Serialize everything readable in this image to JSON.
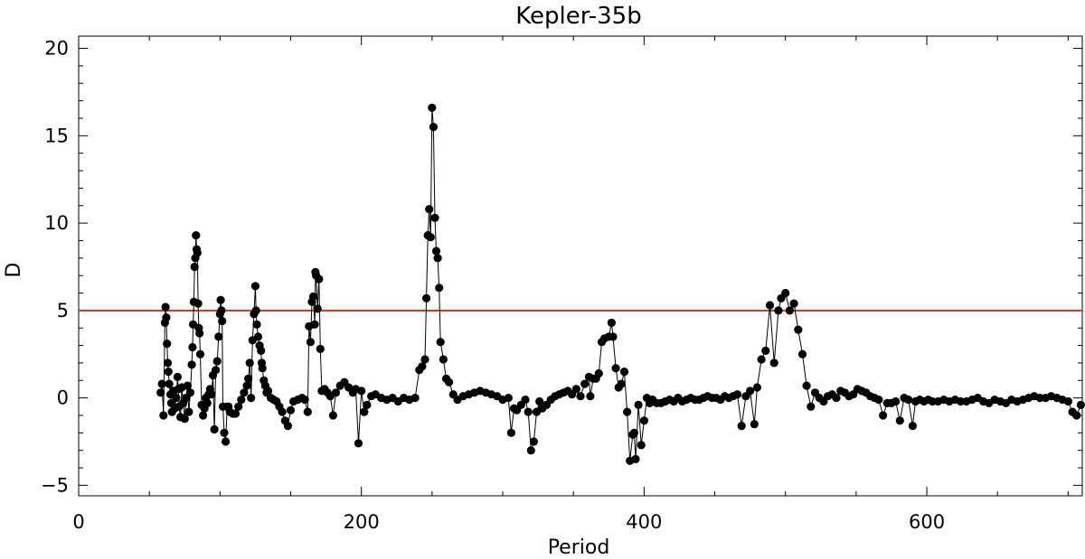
{
  "chart_data": {
    "type": "scatter",
    "title": "Kepler-35b",
    "xlabel": "Period",
    "ylabel": "D",
    "xlim": [
      0,
      710
    ],
    "ylim": [
      -5.6,
      20.7
    ],
    "xticks": [
      0,
      200,
      400,
      600
    ],
    "yticks": [
      -5,
      0,
      5,
      10,
      15,
      20
    ],
    "grid": false,
    "threshold": {
      "y": 5,
      "color": "#c23a1e"
    },
    "series": [
      {
        "color": "#000000",
        "points": [
          [
            58,
            0.3
          ],
          [
            59,
            0.8
          ],
          [
            60,
            -1.0
          ],
          [
            61,
            4.3
          ],
          [
            61.5,
            5.2
          ],
          [
            62,
            4.6
          ],
          [
            62.5,
            3.1
          ],
          [
            63,
            2.0
          ],
          [
            63.5,
            1.5
          ],
          [
            64,
            0.8
          ],
          [
            65,
            0.2
          ],
          [
            65.5,
            -0.3
          ],
          [
            66,
            -0.8
          ],
          [
            67,
            0.4
          ],
          [
            68,
            -0.6
          ],
          [
            69,
            0.0
          ],
          [
            70,
            1.2
          ],
          [
            70.5,
            0.5
          ],
          [
            71,
            -0.5
          ],
          [
            72,
            -1.1
          ],
          [
            73,
            0.6
          ],
          [
            74,
            -0.3
          ],
          [
            75,
            -1.2
          ],
          [
            76,
            0.0
          ],
          [
            77,
            0.7
          ],
          [
            78,
            -0.8
          ],
          [
            79,
            0.3
          ],
          [
            80,
            1.9
          ],
          [
            80.5,
            2.9
          ],
          [
            81,
            4.2
          ],
          [
            81.5,
            5.5
          ],
          [
            82,
            7.5
          ],
          [
            82.5,
            8.0
          ],
          [
            83,
            9.3
          ],
          [
            83.5,
            8.5
          ],
          [
            84,
            8.3
          ],
          [
            84.5,
            5.4
          ],
          [
            85,
            4.0
          ],
          [
            85.5,
            3.7
          ],
          [
            86,
            2.5
          ],
          [
            87,
            -0.4
          ],
          [
            88,
            -1.0
          ],
          [
            89,
            -0.6
          ],
          [
            90,
            0.0
          ],
          [
            91,
            -0.3
          ],
          [
            92,
            0.2
          ],
          [
            93,
            0.5
          ],
          [
            94,
            0.2
          ],
          [
            95,
            1.3
          ],
          [
            96,
            -1.8
          ],
          [
            97,
            1.6
          ],
          [
            98,
            2.1
          ],
          [
            99,
            3.5
          ],
          [
            100,
            4.8
          ],
          [
            100.5,
            5.6
          ],
          [
            101,
            5.0
          ],
          [
            101.5,
            4.4
          ],
          [
            102,
            -0.5
          ],
          [
            103,
            -2.0
          ],
          [
            104,
            -2.5
          ],
          [
            105,
            -0.5
          ],
          [
            106,
            -0.5
          ],
          [
            107,
            -0.8
          ],
          [
            109,
            -0.9
          ],
          [
            111,
            -0.9
          ],
          [
            113,
            -0.5
          ],
          [
            115,
            -0.1
          ],
          [
            117,
            0.3
          ],
          [
            119,
            0.7
          ],
          [
            120,
            1.1
          ],
          [
            121,
            2.0
          ],
          [
            122,
            0.0
          ],
          [
            123,
            3.3
          ],
          [
            124,
            4.8
          ],
          [
            125,
            6.4
          ],
          [
            125.5,
            5.0
          ],
          [
            126,
            4.2
          ],
          [
            127,
            3.5
          ],
          [
            128,
            3.0
          ],
          [
            129,
            2.7
          ],
          [
            129.5,
            2.0
          ],
          [
            130,
            1.7
          ],
          [
            131,
            1.0
          ],
          [
            132,
            0.7
          ],
          [
            133,
            0.3
          ],
          [
            134,
            0.4
          ],
          [
            136,
            0.0
          ],
          [
            138,
            -0.1
          ],
          [
            140,
            -0.2
          ],
          [
            142,
            -0.5
          ],
          [
            144,
            -0.8
          ],
          [
            146,
            -1.3
          ],
          [
            148,
            -1.6
          ],
          [
            150,
            -0.7
          ],
          [
            152,
            -0.2
          ],
          [
            155,
            -0.1
          ],
          [
            158,
            0.0
          ],
          [
            160,
            -0.1
          ],
          [
            162,
            -0.8
          ],
          [
            163,
            4.1
          ],
          [
            164,
            3.2
          ],
          [
            165,
            5.5
          ],
          [
            166,
            5.8
          ],
          [
            167,
            4.2
          ],
          [
            167.5,
            7.2
          ],
          [
            168,
            7.0
          ],
          [
            169,
            5.1
          ],
          [
            170,
            6.8
          ],
          [
            171,
            2.8
          ],
          [
            172,
            0.4
          ],
          [
            174,
            0.5
          ],
          [
            176,
            0.3
          ],
          [
            178,
            0.1
          ],
          [
            180,
            -1.0
          ],
          [
            182,
            0.3
          ],
          [
            185,
            0.7
          ],
          [
            188,
            0.9
          ],
          [
            191,
            0.6
          ],
          [
            194,
            0.3
          ],
          [
            196,
            0.5
          ],
          [
            198,
            -2.6
          ],
          [
            200,
            0.4
          ],
          [
            202,
            -0.8
          ],
          [
            204,
            -0.4
          ],
          [
            207,
            0.1
          ],
          [
            210,
            0.2
          ],
          [
            214,
            0.0
          ],
          [
            218,
            -0.1
          ],
          [
            222,
            0.0
          ],
          [
            226,
            -0.2
          ],
          [
            230,
            0.0
          ],
          [
            234,
            -0.1
          ],
          [
            238,
            0.0
          ],
          [
            241,
            1.6
          ],
          [
            243,
            1.8
          ],
          [
            245,
            2.2
          ],
          [
            246,
            5.7
          ],
          [
            247,
            9.3
          ],
          [
            248,
            10.8
          ],
          [
            249,
            9.2
          ],
          [
            250,
            16.6
          ],
          [
            251,
            15.5
          ],
          [
            252,
            10.3
          ],
          [
            253,
            8.4
          ],
          [
            254,
            8.0
          ],
          [
            255,
            6.3
          ],
          [
            256,
            3.2
          ],
          [
            258,
            2.2
          ],
          [
            260,
            1.1
          ],
          [
            262,
            0.9
          ],
          [
            265,
            0.2
          ],
          [
            268,
            -0.1
          ],
          [
            272,
            0.1
          ],
          [
            276,
            0.2
          ],
          [
            280,
            0.3
          ],
          [
            284,
            0.4
          ],
          [
            288,
            0.3
          ],
          [
            292,
            0.2
          ],
          [
            296,
            0.1
          ],
          [
            300,
            -0.1
          ],
          [
            304,
            0.0
          ],
          [
            306,
            -2.0
          ],
          [
            308,
            -0.6
          ],
          [
            310,
            -0.7
          ],
          [
            313,
            -0.4
          ],
          [
            316,
            -0.1
          ],
          [
            318,
            -0.8
          ],
          [
            320,
            -3.0
          ],
          [
            322,
            -2.5
          ],
          [
            324,
            -0.8
          ],
          [
            326,
            -0.2
          ],
          [
            328,
            -0.6
          ],
          [
            331,
            -0.4
          ],
          [
            334,
            -0.1
          ],
          [
            337,
            0.1
          ],
          [
            340,
            0.2
          ],
          [
            343,
            0.3
          ],
          [
            346,
            0.4
          ],
          [
            349,
            0.2
          ],
          [
            352,
            0.5
          ],
          [
            355,
            0.1
          ],
          [
            358,
            0.8
          ],
          [
            361,
            1.2
          ],
          [
            362,
            0.1
          ],
          [
            364,
            1.1
          ],
          [
            366,
            1.1
          ],
          [
            368,
            1.4
          ],
          [
            370,
            3.2
          ],
          [
            372,
            3.4
          ],
          [
            375,
            3.5
          ],
          [
            377,
            4.3
          ],
          [
            378,
            3.5
          ],
          [
            380,
            1.7
          ],
          [
            382,
            0.6
          ],
          [
            384,
            0.8
          ],
          [
            386,
            1.5
          ],
          [
            388,
            -0.8
          ],
          [
            390,
            -3.6
          ],
          [
            392,
            -2.1
          ],
          [
            393,
            -2.0
          ],
          [
            394,
            -3.5
          ],
          [
            396,
            -0.4
          ],
          [
            398,
            -2.7
          ],
          [
            400,
            -1.3
          ],
          [
            402,
            0.0
          ],
          [
            404,
            -0.3
          ],
          [
            406,
            -0.1
          ],
          [
            409,
            -0.3
          ],
          [
            412,
            -0.3
          ],
          [
            415,
            -0.2
          ],
          [
            418,
            -0.1
          ],
          [
            421,
            -0.2
          ],
          [
            424,
            0.0
          ],
          [
            427,
            -0.2
          ],
          [
            430,
            -0.1
          ],
          [
            433,
            0.0
          ],
          [
            436,
            -0.1
          ],
          [
            439,
            -0.1
          ],
          [
            442,
            0.0
          ],
          [
            445,
            0.1
          ],
          [
            448,
            0.0
          ],
          [
            451,
            0.0
          ],
          [
            454,
            -0.1
          ],
          [
            457,
            0.1
          ],
          [
            460,
            0.0
          ],
          [
            463,
            0.1
          ],
          [
            466,
            0.2
          ],
          [
            469,
            -1.6
          ],
          [
            472,
            0.1
          ],
          [
            475,
            0.4
          ],
          [
            478,
            -1.5
          ],
          [
            480,
            0.6
          ],
          [
            483,
            2.2
          ],
          [
            486,
            2.7
          ],
          [
            489,
            5.3
          ],
          [
            492,
            2.0
          ],
          [
            495,
            5.0
          ],
          [
            497,
            5.7
          ],
          [
            500,
            6.0
          ],
          [
            503,
            5.0
          ],
          [
            506,
            5.4
          ],
          [
            509,
            3.9
          ],
          [
            512,
            2.5
          ],
          [
            515,
            0.7
          ],
          [
            518,
            -0.5
          ],
          [
            521,
            0.3
          ],
          [
            524,
            0.0
          ],
          [
            527,
            -0.2
          ],
          [
            530,
            0.1
          ],
          [
            533,
            0.2
          ],
          [
            536,
            0.0
          ],
          [
            539,
            0.4
          ],
          [
            542,
            0.3
          ],
          [
            545,
            0.1
          ],
          [
            548,
            0.2
          ],
          [
            551,
            0.5
          ],
          [
            554,
            0.4
          ],
          [
            557,
            0.3
          ],
          [
            560,
            0.1
          ],
          [
            563,
            0.0
          ],
          [
            566,
            -0.1
          ],
          [
            569,
            -1.0
          ],
          [
            572,
            -0.3
          ],
          [
            575,
            -0.3
          ],
          [
            578,
            -0.2
          ],
          [
            581,
            -1.3
          ],
          [
            584,
            0.0
          ],
          [
            587,
            -0.1
          ],
          [
            590,
            -1.6
          ],
          [
            592,
            -0.2
          ],
          [
            595,
            -0.1
          ],
          [
            598,
            -0.2
          ],
          [
            601,
            -0.1
          ],
          [
            604,
            -0.2
          ],
          [
            608,
            -0.2
          ],
          [
            612,
            -0.1
          ],
          [
            616,
            -0.2
          ],
          [
            620,
            -0.1
          ],
          [
            624,
            -0.2
          ],
          [
            628,
            -0.2
          ],
          [
            632,
            -0.1
          ],
          [
            636,
            0.0
          ],
          [
            640,
            -0.2
          ],
          [
            644,
            -0.3
          ],
          [
            648,
            -0.1
          ],
          [
            652,
            -0.2
          ],
          [
            656,
            -0.3
          ],
          [
            660,
            -0.1
          ],
          [
            664,
            -0.2
          ],
          [
            668,
            -0.1
          ],
          [
            672,
            0.0
          ],
          [
            676,
            0.1
          ],
          [
            680,
            0.0
          ],
          [
            684,
            0.0
          ],
          [
            688,
            0.1
          ],
          [
            692,
            0.0
          ],
          [
            696,
            -0.1
          ],
          [
            700,
            -0.2
          ],
          [
            703,
            -0.8
          ],
          [
            706,
            -1.0
          ],
          [
            709,
            -0.4
          ]
        ]
      }
    ]
  }
}
